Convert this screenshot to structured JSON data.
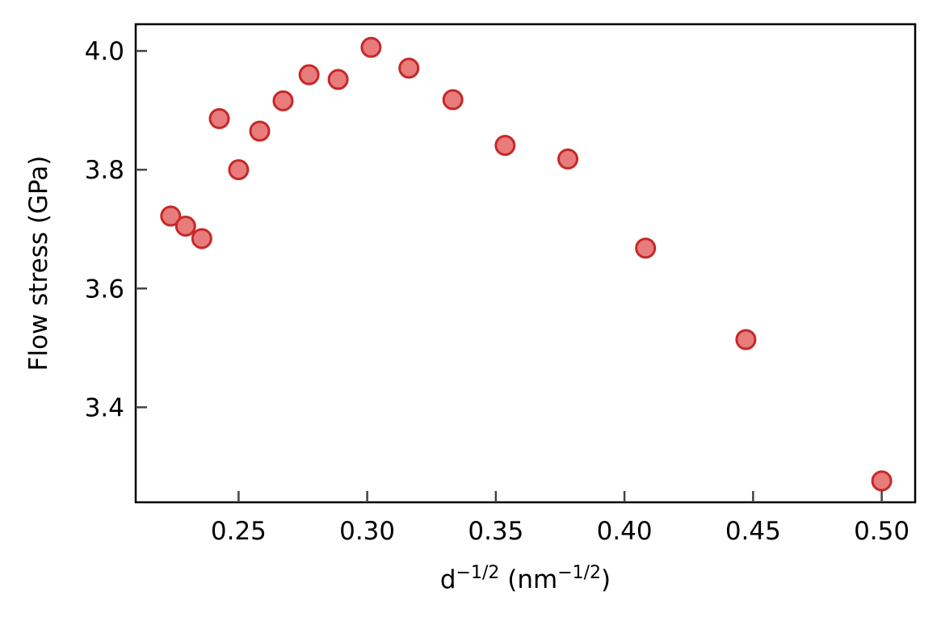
{
  "chart_data": {
    "type": "scatter",
    "title": "",
    "xlabel": {
      "base": "d",
      "exp": "−1/2",
      "unit_open": " (nm",
      "unit_exp": "−1/2",
      "unit_close": ")"
    },
    "ylabel": "Flow stress (GPa)",
    "xlim": [
      0.21,
      0.513
    ],
    "ylim": [
      3.24,
      4.045
    ],
    "xticks": [
      0.25,
      0.3,
      0.35,
      0.4,
      0.45,
      0.5
    ],
    "xtick_labels": [
      "0.25",
      "0.30",
      "0.35",
      "0.40",
      "0.45",
      "0.50"
    ],
    "yticks": [
      3.4,
      3.6,
      3.8,
      4.0
    ],
    "ytick_labels": [
      "3.4",
      "3.6",
      "3.8",
      "4.0"
    ],
    "grid": false,
    "marker_fill": "#e87b7b",
    "marker_edge": "#c62828",
    "points": [
      {
        "x": 0.2236,
        "y": 3.722
      },
      {
        "x": 0.2294,
        "y": 3.705
      },
      {
        "x": 0.2357,
        "y": 3.684
      },
      {
        "x": 0.2425,
        "y": 3.886
      },
      {
        "x": 0.25,
        "y": 3.8
      },
      {
        "x": 0.2582,
        "y": 3.865
      },
      {
        "x": 0.2673,
        "y": 3.916
      },
      {
        "x": 0.2774,
        "y": 3.96
      },
      {
        "x": 0.2887,
        "y": 3.952
      },
      {
        "x": 0.3015,
        "y": 4.006
      },
      {
        "x": 0.3162,
        "y": 3.971
      },
      {
        "x": 0.3333,
        "y": 3.918
      },
      {
        "x": 0.3536,
        "y": 3.841
      },
      {
        "x": 0.378,
        "y": 3.818
      },
      {
        "x": 0.4082,
        "y": 3.668
      },
      {
        "x": 0.4472,
        "y": 3.514
      },
      {
        "x": 0.5,
        "y": 3.276
      }
    ]
  }
}
